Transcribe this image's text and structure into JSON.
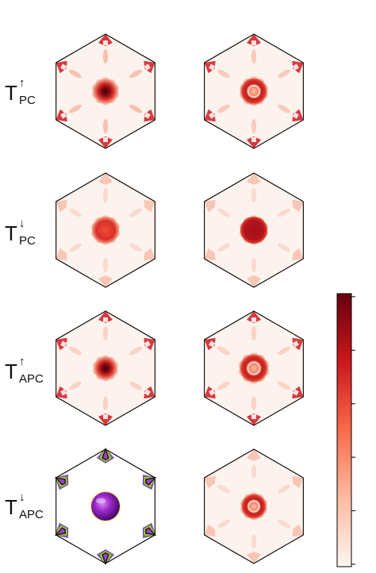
{
  "rows": [
    {
      "symbol": "T",
      "spin": "↑",
      "subscript": "PC",
      "left_panel": "reds",
      "right_panel": "reds"
    },
    {
      "symbol": "T",
      "spin": "↓",
      "subscript": "PC",
      "left_panel": "reds",
      "right_panel": "reds"
    },
    {
      "symbol": "T",
      "spin": "↑",
      "subscript": "APC",
      "left_panel": "reds",
      "right_panel": "reds"
    },
    {
      "symbol": "T",
      "spin": "↓",
      "subscript": "APC",
      "left_panel": "multicolor",
      "right_panel": "reds"
    }
  ],
  "colorbar": {
    "colormap": "Reds",
    "tick_count": 6,
    "colors": {
      "high": "#67000d",
      "mid": "#e3362c",
      "low": "#fcf0ea",
      "panel_bg": "#fdf3ee"
    }
  },
  "colors": {
    "hexagon_edge": "#000000",
    "multicolor_sphere": "#9b29c9",
    "multicolor_edges": [
      "#8b2fc9",
      "#28a745",
      "#f0e010",
      "#111111"
    ]
  }
}
